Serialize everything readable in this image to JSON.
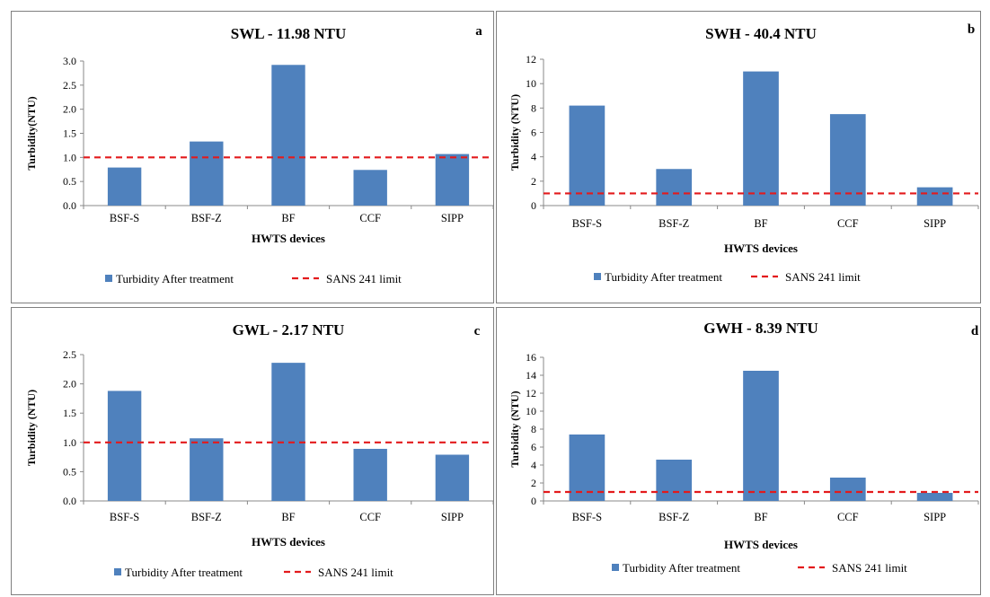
{
  "chart_data": [
    {
      "panel": "a",
      "type": "bar",
      "title": "SWL - 11.98 NTU",
      "xlabel": "HWTS devices",
      "ylabel": "Turbidity(NTU)",
      "categories": [
        "BSF-S",
        "BSF-Z",
        "BF",
        "CCF",
        "SIPP"
      ],
      "series": [
        {
          "name": "Turbidity After treatment",
          "values": [
            0.79,
            1.33,
            2.92,
            0.74,
            1.07
          ],
          "color": "#4f81bd"
        }
      ],
      "reference_line": {
        "name": "SANS 241 limit",
        "value": 1.0,
        "color": "#e31a1c",
        "style": "dashed"
      },
      "ylim": [
        0,
        3.0
      ],
      "yticks": [
        "0.0",
        "0.5",
        "1.0",
        "1.5",
        "2.0",
        "2.5",
        "3.0"
      ],
      "legend": "bottom",
      "grid": false
    },
    {
      "panel": "b",
      "type": "bar",
      "title": "SWH - 40.4 NTU",
      "xlabel": "HWTS devices",
      "ylabel": "Turbidity (NTU)",
      "categories": [
        "BSF-S",
        "BSF-Z",
        "BF",
        "CCF",
        "SIPP"
      ],
      "series": [
        {
          "name": "Turbidity After treatment",
          "values": [
            8.2,
            3.0,
            11.0,
            7.5,
            1.5
          ],
          "color": "#4f81bd"
        }
      ],
      "reference_line": {
        "name": "SANS 241 limit",
        "value": 1.0,
        "color": "#e31a1c",
        "style": "dashed"
      },
      "ylim": [
        0,
        12
      ],
      "yticks": [
        "0",
        "2",
        "4",
        "6",
        "8",
        "10",
        "12"
      ],
      "legend": "bottom",
      "grid": false
    },
    {
      "panel": "c",
      "type": "bar",
      "title": "GWL - 2.17 NTU",
      "xlabel": "HWTS devices",
      "ylabel": "Turbidity (NTU)",
      "categories": [
        "BSF-S",
        "BSF-Z",
        "BF",
        "CCF",
        "SIPP"
      ],
      "series": [
        {
          "name": "Turbidity After treatment",
          "values": [
            1.88,
            1.07,
            2.36,
            0.89,
            0.79
          ],
          "color": "#4f81bd"
        }
      ],
      "reference_line": {
        "name": "SANS 241 limit",
        "value": 1.0,
        "color": "#e31a1c",
        "style": "dashed"
      },
      "ylim": [
        0,
        2.5
      ],
      "yticks": [
        "0.0",
        "0.5",
        "1.0",
        "1.5",
        "2.0",
        "2.5"
      ],
      "legend": "bottom",
      "grid": false
    },
    {
      "panel": "d",
      "type": "bar",
      "title": "GWH - 8.39 NTU",
      "xlabel": "HWTS devices",
      "ylabel": "Turbidity (NTU)",
      "categories": [
        "BSF-S",
        "BSF-Z",
        "BF",
        "CCF",
        "SIPP"
      ],
      "series": [
        {
          "name": "Turbidity After treatment",
          "values": [
            7.4,
            4.6,
            14.5,
            2.6,
            0.9
          ],
          "color": "#4f81bd"
        }
      ],
      "reference_line": {
        "name": "SANS 241 limit",
        "value": 1.0,
        "color": "#e31a1c",
        "style": "dashed"
      },
      "ylim": [
        0,
        16
      ],
      "yticks": [
        "0",
        "2",
        "4",
        "6",
        "8",
        "10",
        "12",
        "14",
        "16"
      ],
      "legend": "bottom",
      "grid": false
    }
  ]
}
